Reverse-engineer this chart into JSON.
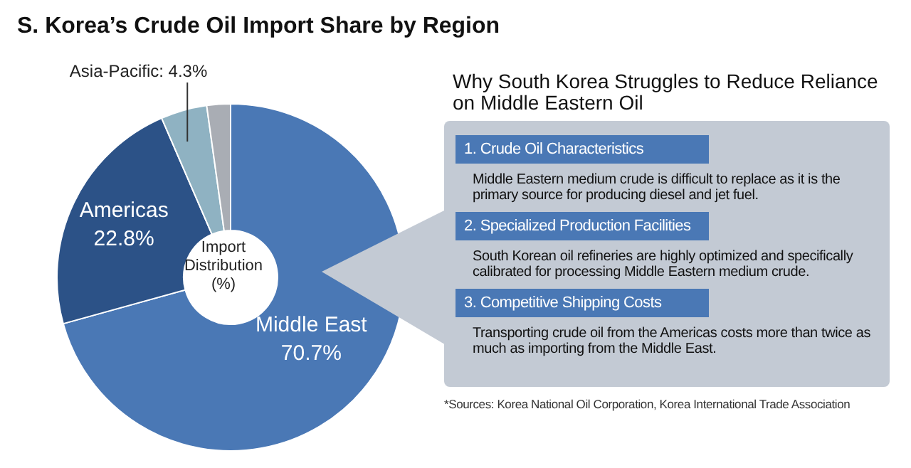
{
  "chart_data": [
    {
      "type": "donut",
      "title": "S. Korea’s Crude Oil Import Share by Region",
      "categories": [
        "Middle East",
        "Americas",
        "Asia-Pacific",
        null
      ],
      "values": [
        70.7,
        22.8,
        4.3,
        2.2
      ],
      "colors": [
        "#4a78b5",
        "#2c5287",
        "#8fb2c2",
        "#a9adb4"
      ],
      "value_labels": [
        "70.7%",
        "22.8%",
        "4.3%",
        null
      ],
      "annotations": [
        "Import Distribution (%)"
      ]
    },
    {
      "type": "other",
      "title": "Why South Korea Struggles to Reduce Reliance on Middle Eastern Oil",
      "annotations": [
        "1. Crude Oil Characteristics",
        "Middle Eastern medium crude is difficult to replace as it is the primary source for producing diesel and jet fuel.",
        "2. Specialized Production Facilities",
        "South Korean oil refineries are highly optimized and specifically calibrated for processing Middle Eastern medium crude.",
        "3. Competitive Shipping Costs",
        "Transporting crude oil from the Americas costs more than twice as much as importing from the Middle East.",
        "*Sources: Korea National Oil Corporation, Korea International Trade Association"
      ]
    }
  ]
}
